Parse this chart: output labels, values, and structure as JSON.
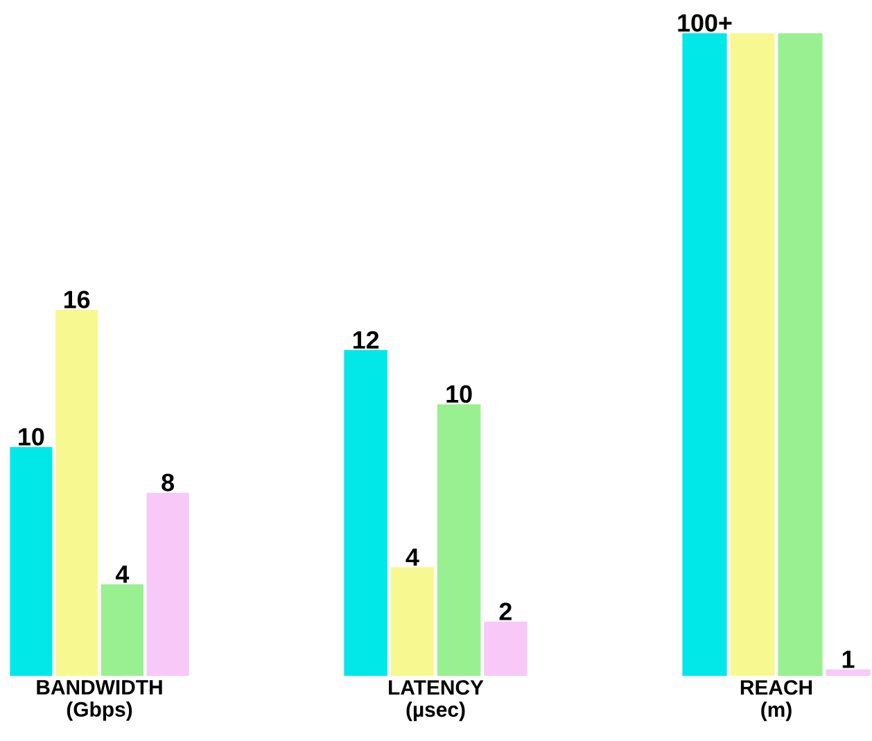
{
  "chart_data": [
    {
      "type": "bar",
      "xlabel": "BANDWIDTH (Gbps)",
      "categories": [
        null,
        null,
        null,
        null
      ],
      "values": [
        10,
        16,
        4,
        8
      ],
      "value_labels": [
        "10",
        "16",
        "4",
        "8"
      ],
      "colors": [
        "#00e8e8",
        "#f8f890",
        "#98f090",
        "#f8c8f8"
      ]
    },
    {
      "type": "bar",
      "xlabel": "LATENCY (µsec)",
      "categories": [
        null,
        null,
        null,
        null
      ],
      "values": [
        12,
        4,
        10,
        2
      ],
      "value_labels": [
        "12",
        "4",
        "10",
        "2"
      ],
      "colors": [
        "#00e8e8",
        "#f8f890",
        "#98f090",
        "#f8c8f8"
      ]
    },
    {
      "type": "bar",
      "xlabel": "REACH (m)",
      "categories": [
        null,
        null,
        null,
        null
      ],
      "values": [
        100,
        100,
        100,
        1
      ],
      "value_labels": [
        "100+",
        null,
        null,
        "1"
      ],
      "colors": [
        "#00e8e8",
        "#f8f890",
        "#98f090",
        "#f8c8f8"
      ]
    }
  ]
}
